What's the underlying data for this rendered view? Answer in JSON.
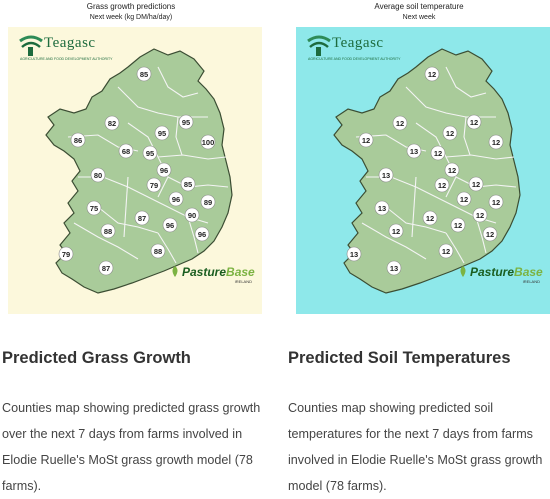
{
  "cards": [
    {
      "map_title": "Grass growth predictions",
      "map_subtitle": "Next week (kg DM/ha/day)",
      "heading": "Predicted Grass Growth",
      "description": "Counties map showing predicted grass growth over the next 7 days from farms involved in Elodie Ruelle's MoSt grass growth model (78 farms).",
      "panel_color": "#fcf8dc",
      "values": [
        "85",
        "82",
        "95",
        "95",
        "86",
        "68",
        "100",
        "95",
        "96",
        "80",
        "79",
        "85",
        "96",
        "89",
        "75",
        "87",
        "90",
        "88",
        "96",
        "96",
        "79",
        "88",
        "87"
      ]
    },
    {
      "map_title": "Average soil temperature",
      "map_subtitle": "Next week",
      "heading": "Predicted Soil Temperatures",
      "description": "Counties map showing predicted soil temperatures for the next 7 days from farms involved in Elodie Ruelle's MoSt grass growth model (78 farms).",
      "panel_color": "#8ee8ea",
      "values": [
        "12",
        "12",
        "12",
        "12",
        "12",
        "13",
        "12",
        "12",
        "12",
        "13",
        "12",
        "12",
        "12",
        "12",
        "13",
        "12",
        "12",
        "12",
        "12",
        "12",
        "13",
        "12",
        "13"
      ]
    }
  ],
  "logos": {
    "teagasc": "Teagasc",
    "teagasc_tagline": "AGRICULTURE AND FOOD DEVELOPMENT AUTHORITY",
    "pasturebase_a": "Pasture",
    "pasturebase_b": "Base",
    "pasturebase_sub": "IRELAND"
  },
  "colors": {
    "land": "#a9cb9a",
    "border": "#3b4d33"
  },
  "icons": [
    "teagasc-logo",
    "pasturebase-logo"
  ]
}
